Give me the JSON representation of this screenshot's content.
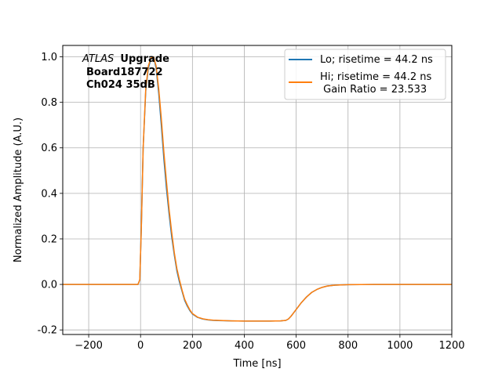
{
  "chart_data": {
    "type": "line",
    "xlabel": "Time [ns]",
    "ylabel": "Normalized Amplitude (A.U.)",
    "xlim": [
      -300,
      1200
    ],
    "ylim": [
      -0.22,
      1.05
    ],
    "xticks": [
      -200,
      0,
      200,
      400,
      600,
      800,
      1000,
      1200
    ],
    "yticks": [
      -0.2,
      0.0,
      0.2,
      0.4,
      0.6,
      0.8,
      1.0
    ],
    "grid": true,
    "legend_position": "top-right",
    "annotation": {
      "line1_italic": "ATLAS",
      "line1_bold": "Upgrade",
      "line2": "Board187722",
      "line3": "Ch024 35dB"
    },
    "series": [
      {
        "name": "Lo; risetime = 44.2 ns",
        "color": "#1f77b4",
        "x": [
          -300,
          -100,
          -10,
          -3,
          3,
          10,
          20,
          30,
          40,
          50,
          60,
          70,
          80,
          90,
          100,
          110,
          120,
          130,
          140,
          150,
          160,
          170,
          180,
          190,
          200,
          220,
          240,
          260,
          280,
          300,
          350,
          400,
          450,
          500,
          540,
          560,
          570,
          580,
          590,
          600,
          620,
          640,
          660,
          680,
          700,
          720,
          750,
          800,
          900,
          1000,
          1100,
          1200
        ],
        "y": [
          0.0,
          0.0,
          0.0,
          0.02,
          0.25,
          0.6,
          0.85,
          0.95,
          0.99,
          1.0,
          0.95,
          0.84,
          0.7,
          0.55,
          0.42,
          0.31,
          0.21,
          0.13,
          0.06,
          0.01,
          -0.03,
          -0.07,
          -0.095,
          -0.115,
          -0.13,
          -0.145,
          -0.152,
          -0.156,
          -0.158,
          -0.159,
          -0.16,
          -0.161,
          -0.161,
          -0.161,
          -0.16,
          -0.158,
          -0.152,
          -0.14,
          -0.125,
          -0.11,
          -0.08,
          -0.055,
          -0.035,
          -0.022,
          -0.013,
          -0.007,
          -0.003,
          -0.001,
          0.0,
          0.0,
          0.0,
          0.0
        ]
      },
      {
        "name": "Hi; risetime = 44.2 ns\n Gain Ratio = 23.533",
        "color": "#ff7f0e",
        "x": [
          -300,
          -100,
          -10,
          -3,
          3,
          10,
          20,
          30,
          40,
          50,
          60,
          70,
          80,
          90,
          100,
          110,
          120,
          130,
          140,
          150,
          160,
          170,
          180,
          190,
          200,
          220,
          240,
          260,
          280,
          300,
          350,
          400,
          450,
          500,
          540,
          560,
          570,
          580,
          590,
          600,
          620,
          640,
          660,
          680,
          700,
          720,
          750,
          800,
          900,
          1000,
          1100,
          1200
        ],
        "y": [
          0.0,
          0.0,
          0.0,
          0.02,
          0.25,
          0.6,
          0.86,
          0.96,
          0.995,
          1.0,
          0.96,
          0.86,
          0.73,
          0.58,
          0.45,
          0.33,
          0.23,
          0.14,
          0.07,
          0.02,
          -0.025,
          -0.065,
          -0.09,
          -0.112,
          -0.128,
          -0.144,
          -0.151,
          -0.155,
          -0.157,
          -0.158,
          -0.16,
          -0.161,
          -0.161,
          -0.161,
          -0.16,
          -0.158,
          -0.152,
          -0.14,
          -0.125,
          -0.11,
          -0.08,
          -0.055,
          -0.035,
          -0.022,
          -0.013,
          -0.007,
          -0.003,
          -0.001,
          0.0,
          0.0,
          0.0,
          0.0
        ]
      }
    ]
  }
}
